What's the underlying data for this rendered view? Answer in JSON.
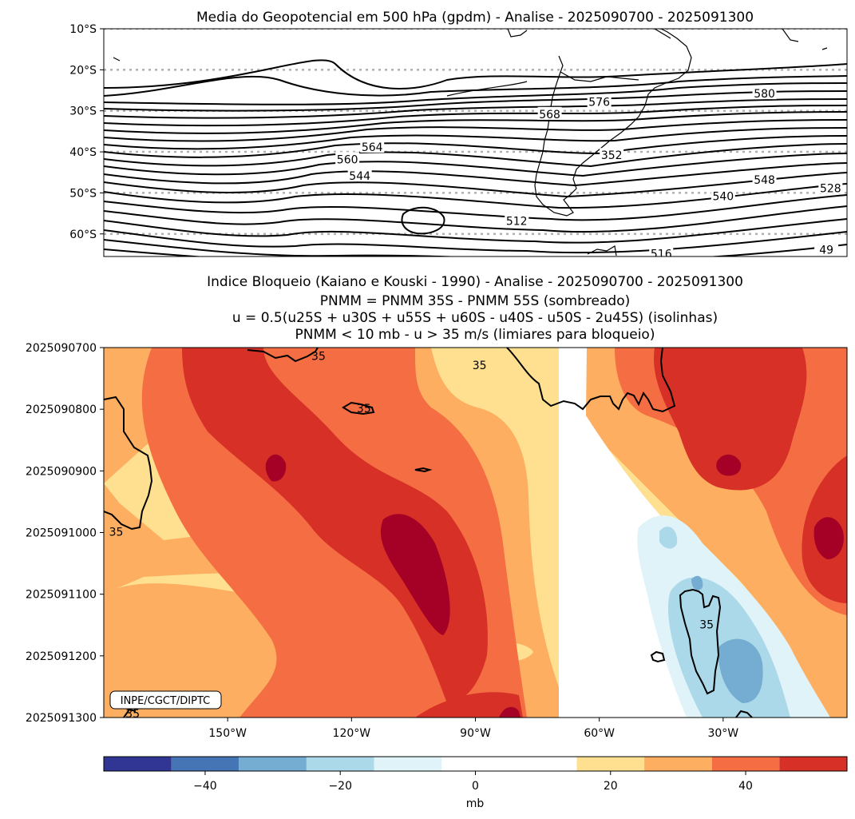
{
  "chart_data": [
    {
      "type": "contour",
      "title": "Media do Geopotencial em 500 hPa (gpdm) - Analise - 2025090700 - 2025091300",
      "y_ticks": [
        "10°S",
        "20°S",
        "30°S",
        "40°S",
        "50°S",
        "60°S"
      ],
      "y_values": [
        -10,
        -20,
        -30,
        -40,
        -50,
        -60
      ],
      "ylim": [
        -65.5,
        -10
      ],
      "grid": "dotted latitude lines",
      "contour_labels": [
        {
          "text": "576",
          "lon": -60,
          "lat": -28
        },
        {
          "text": "568",
          "lon": -72,
          "lat": -31
        },
        {
          "text": "580",
          "lon": -20,
          "lat": -26
        },
        {
          "text": "560",
          "lon": -121,
          "lat": -42
        },
        {
          "text": "564",
          "lon": -115,
          "lat": -39
        },
        {
          "text": "352",
          "lon": -57,
          "lat": -41
        },
        {
          "text": "544",
          "lon": -118,
          "lat": -46
        },
        {
          "text": "548",
          "lon": -20,
          "lat": -47
        },
        {
          "text": "540",
          "lon": -30,
          "lat": -51
        },
        {
          "text": "528",
          "lon": -4,
          "lat": -49
        },
        {
          "text": "512",
          "lon": -80,
          "lat": -57
        },
        {
          "text": "516",
          "lon": -45,
          "lat": -65
        },
        {
          "text": "49",
          "lon": -5,
          "lat": -64
        }
      ]
    },
    {
      "type": "heatmap",
      "title_lines": [
        "Indice Bloqueio (Kaiano e Kouski - 1990) - Analise - 2025090700 - 2025091300",
        "PNMM = PNMM 35S - PNMM 55S (sombreado)",
        "u = 0.5(u25S + u30S + u55S + u60S - u40S - u50S - 2u45S) (isolinhas)",
        "PNMM < 10 mb - u > 35 m/s (limiares para bloqueio)"
      ],
      "x_ticks": [
        "150°W",
        "120°W",
        "90°W",
        "60°W",
        "30°W"
      ],
      "x_values": [
        -150,
        -120,
        -90,
        -60,
        -30
      ],
      "xlim": [
        -180,
        0
      ],
      "y_ticks": [
        "2025090700",
        "2025090800",
        "2025090900",
        "2025091000",
        "2025091100",
        "2025091200",
        "2025091300"
      ],
      "ylim": [
        0,
        6
      ],
      "contour_value": "35",
      "contour_labels": [
        {
          "text": "35",
          "lon": -128,
          "day": 0.15
        },
        {
          "text": "35",
          "lon": -89,
          "day": 0.3
        },
        {
          "text": "35",
          "lon": -117,
          "day": 1.0
        },
        {
          "text": "35",
          "lon": -177,
          "day": 3.0
        },
        {
          "text": "35",
          "lon": -34,
          "day": 4.5
        },
        {
          "text": "35",
          "lon": -173,
          "day": 5.95
        }
      ],
      "annotation": "INPE/CGCT/DIPTC"
    }
  ],
  "colorbar": {
    "label": "mb",
    "range": [
      -55,
      55
    ],
    "levels": [
      -55,
      -45,
      -35,
      -25,
      -15,
      -5,
      5,
      15,
      25,
      35,
      45,
      55
    ],
    "colors": [
      "#313695",
      "#4575b4",
      "#74add1",
      "#abd9e9",
      "#e0f3f8",
      "#ffffff",
      "#ffffff",
      "#fee090",
      "#fdae61",
      "#f46d43",
      "#d73027",
      "#a50026"
    ],
    "tick_values": [
      -40,
      -20,
      0,
      20,
      40
    ],
    "tick_labels": [
      "−40",
      "−20",
      "0",
      "20",
      "40"
    ]
  }
}
